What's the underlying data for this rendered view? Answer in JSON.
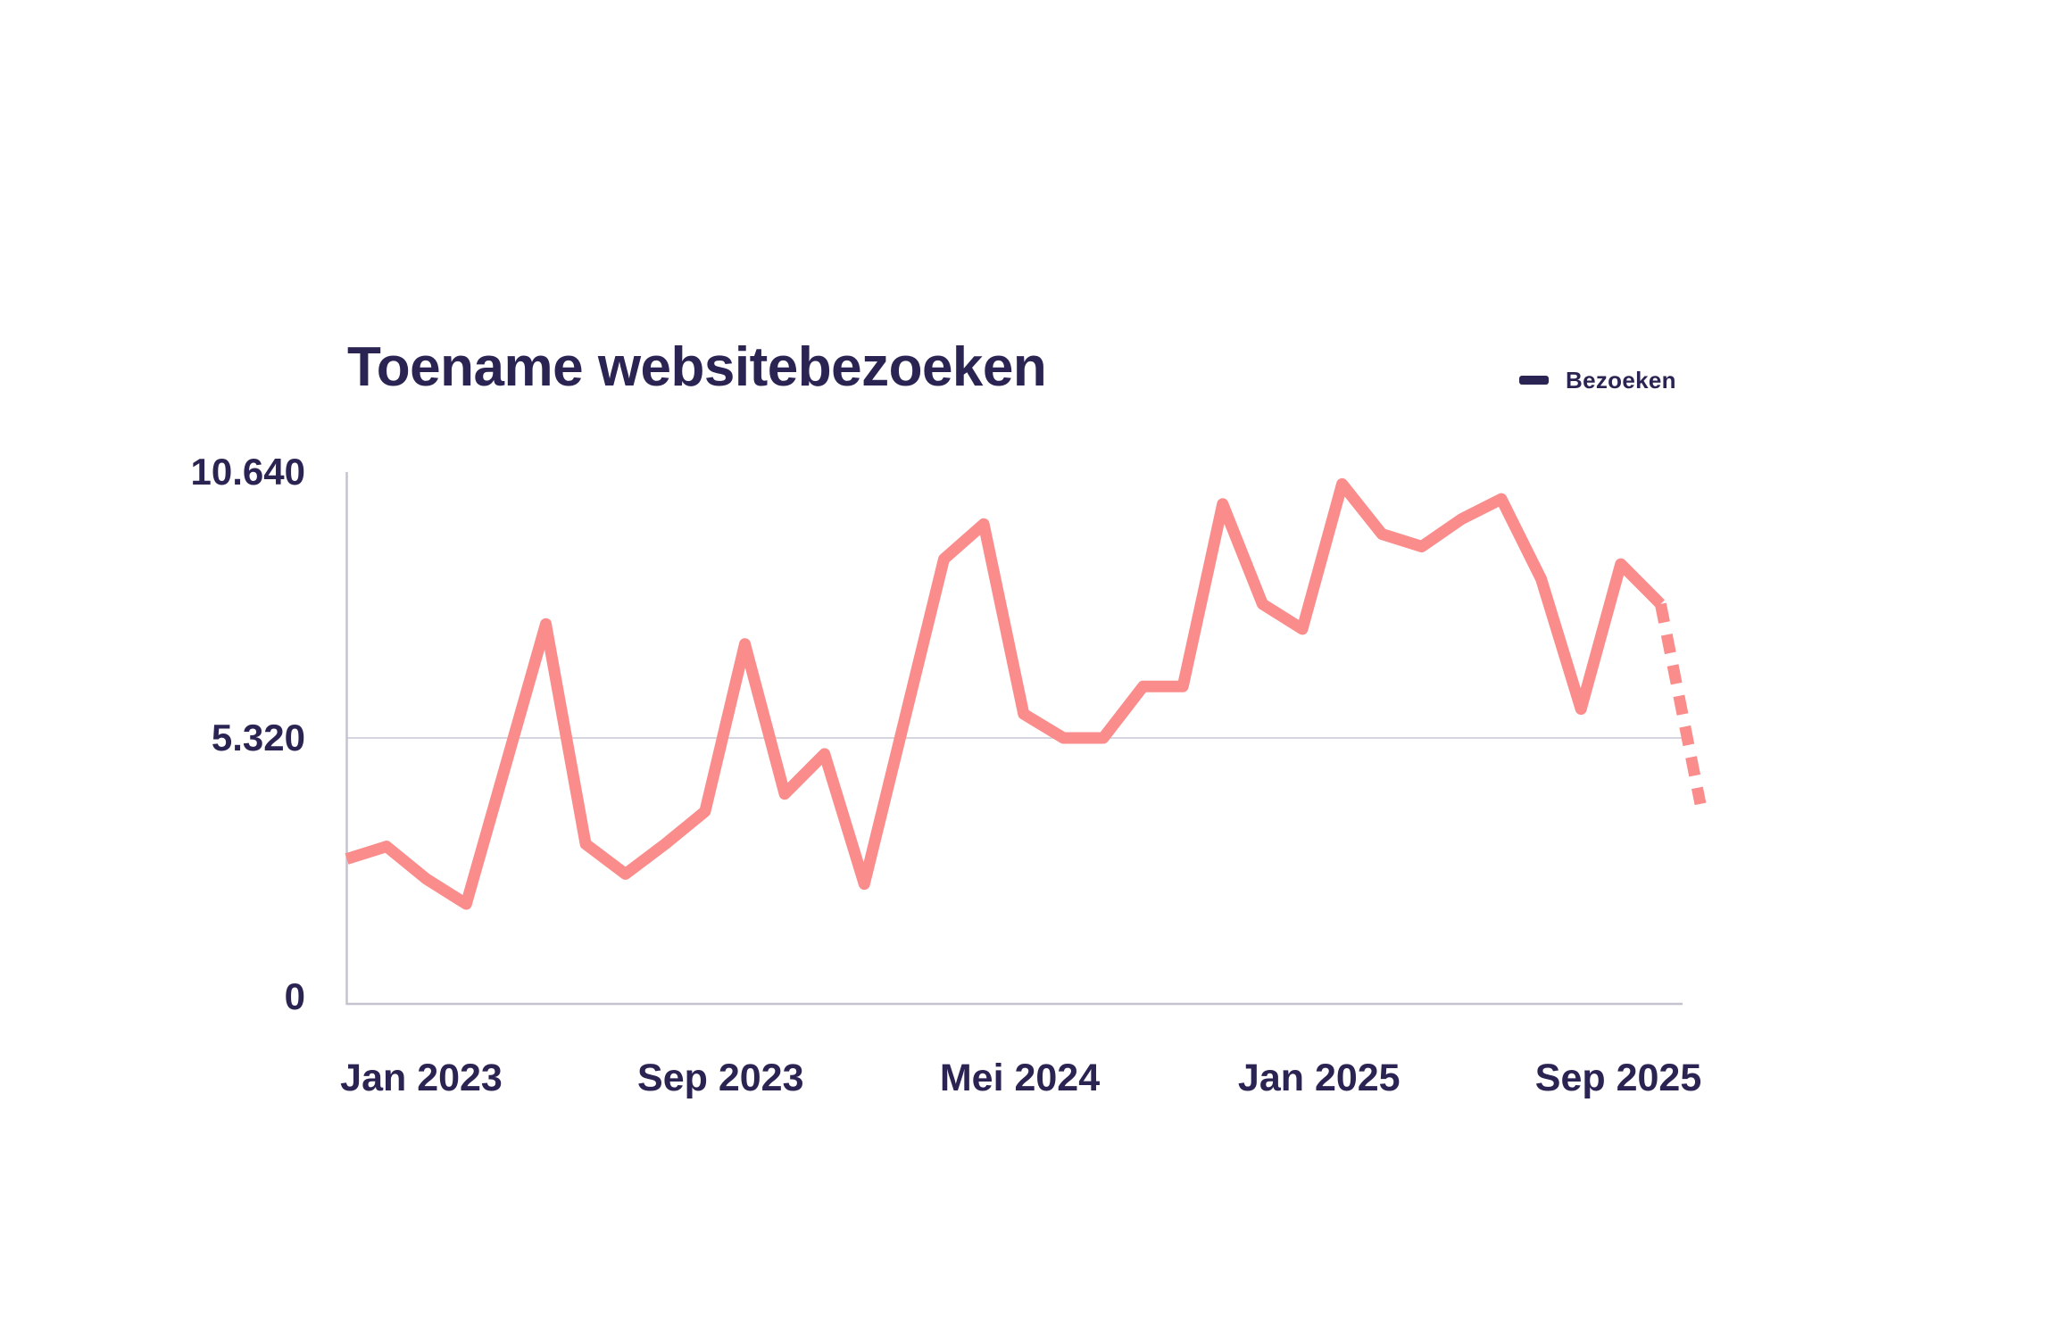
{
  "page": {
    "background": "#FFFFFF"
  },
  "legend": {
    "label": "Bezoeken"
  },
  "colors": {
    "line_pink": "#FA8C8C",
    "text_navy": "#2A2453",
    "gridline": "#D6D6E0",
    "axis": "#C4C4D0"
  },
  "chart_data": {
    "type": "line",
    "title": "Toename websitebezoeken",
    "xlabel": "",
    "ylabel": "",
    "ylim": [
      0,
      10640
    ],
    "y_ticks": [
      {
        "value": 10640,
        "label": "10.640"
      },
      {
        "value": 5320,
        "label": "5.320"
      },
      {
        "value": 0,
        "label": "0"
      }
    ],
    "grid": "single horizontal gridline at 5320",
    "legend_position": "top-right",
    "x_tick_labels": [
      "Jan 2023",
      "Sep 2023",
      "Mei 2024",
      "Jan 2025",
      "Sep 2025"
    ],
    "categories": [
      "Jan 2023",
      "Feb 2023",
      "Mrt 2023",
      "Apr 2023",
      "Mei 2023",
      "Jun 2023",
      "Jul 2023",
      "Aug 2023",
      "Sep 2023",
      "Okt 2023",
      "Nov 2023",
      "Dec 2023",
      "Jan 2024",
      "Feb 2024",
      "Mrt 2024",
      "Apr 2024",
      "Mei 2024",
      "Jun 2024",
      "Jul 2024",
      "Aug 2024",
      "Sep 2024",
      "Okt 2024",
      "Nov 2024",
      "Dec 2024",
      "Jan 2025",
      "Feb 2025",
      "Mrt 2025",
      "Apr 2025",
      "Mei 2025",
      "Jun 2025",
      "Jul 2025",
      "Aug 2025",
      "Sep 2025",
      "Okt 2025",
      "Nov 2025"
    ],
    "series": [
      {
        "name": "Bezoeken",
        "color": "#FA8C8C",
        "values": [
          2900,
          3150,
          2500,
          2000,
          4800,
          7600,
          3200,
          2600,
          3200,
          3850,
          7200,
          4200,
          5000,
          2400,
          5650,
          8900,
          9600,
          5800,
          5320,
          5320,
          6350,
          6350,
          10000,
          8000,
          7500,
          10400,
          9400,
          9150,
          9700,
          10100,
          8500,
          5900,
          8800,
          8000,
          4000
        ],
        "forecast_start_index": 33,
        "forecast_style": "dashed"
      }
    ]
  }
}
